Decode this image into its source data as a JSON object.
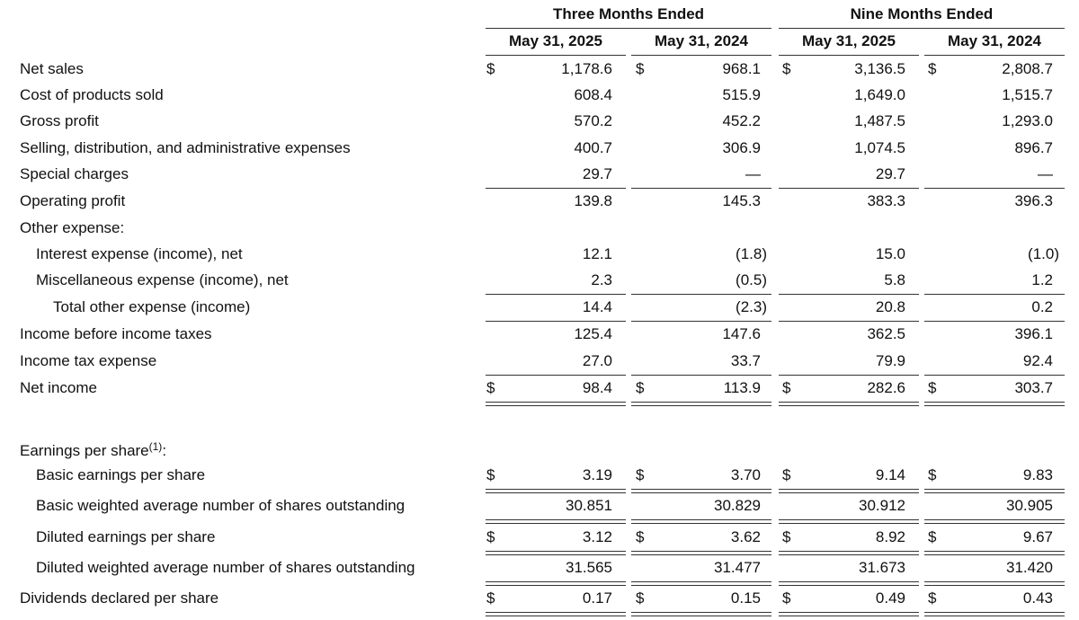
{
  "headers": {
    "three_months": "Three Months Ended",
    "nine_months": "Nine Months Ended",
    "col1": "May 31, 2025",
    "col2": "May 31, 2024",
    "col3": "May 31, 2025",
    "col4": "May 31, 2024"
  },
  "currency_symbol": "$",
  "rows": [
    {
      "label": "Net sales",
      "values": [
        "1,178.6",
        "968.1",
        "3,136.5",
        "2,808.7"
      ]
    },
    {
      "label": "Cost of products sold",
      "values": [
        "608.4",
        "515.9",
        "1,649.0",
        "1,515.7"
      ]
    },
    {
      "label": "Gross profit",
      "values": [
        "570.2",
        "452.2",
        "1,487.5",
        "1,293.0"
      ]
    },
    {
      "label": "Selling, distribution, and administrative expenses",
      "values": [
        "400.7",
        "306.9",
        "1,074.5",
        "896.7"
      ]
    },
    {
      "label": "Special charges",
      "values": [
        "29.7",
        "—",
        "29.7",
        "—"
      ]
    },
    {
      "label": "Operating profit",
      "values": [
        "139.8",
        "145.3",
        "383.3",
        "396.3"
      ]
    },
    {
      "label": "Other expense:",
      "values": [
        "",
        "",
        "",
        ""
      ]
    },
    {
      "label": "Interest expense (income), net",
      "values": [
        "12.1",
        "(1.8)",
        "15.0",
        "(1.0)"
      ]
    },
    {
      "label": "Miscellaneous expense (income), net",
      "values": [
        "2.3",
        "(0.5)",
        "5.8",
        "1.2"
      ]
    },
    {
      "label": "Total other expense (income)",
      "values": [
        "14.4",
        "(2.3)",
        "20.8",
        "0.2"
      ]
    },
    {
      "label": "Income before income taxes",
      "values": [
        "125.4",
        "147.6",
        "362.5",
        "396.1"
      ]
    },
    {
      "label": "Income tax expense",
      "values": [
        "27.0",
        "33.7",
        "79.9",
        "92.4"
      ]
    },
    {
      "label": "Net income",
      "values": [
        "98.4",
        "113.9",
        "282.6",
        "303.7"
      ]
    }
  ],
  "eps": {
    "heading": "Earnings per share",
    "footnote": "(1)",
    "colon": ":",
    "rows": [
      {
        "label": "Basic earnings per share",
        "values": [
          "3.19",
          "3.70",
          "9.14",
          "9.83"
        ]
      },
      {
        "label": "Basic weighted average number of shares outstanding",
        "values": [
          "30.851",
          "30.829",
          "30.912",
          "30.905"
        ]
      },
      {
        "label": "Diluted earnings per share",
        "values": [
          "3.12",
          "3.62",
          "8.92",
          "9.67"
        ]
      },
      {
        "label": "Diluted weighted average number of shares outstanding",
        "values": [
          "31.565",
          "31.477",
          "31.673",
          "31.420"
        ]
      },
      {
        "label": "Dividends declared per share",
        "values": [
          "0.17",
          "0.15",
          "0.49",
          "0.43"
        ]
      }
    ]
  }
}
